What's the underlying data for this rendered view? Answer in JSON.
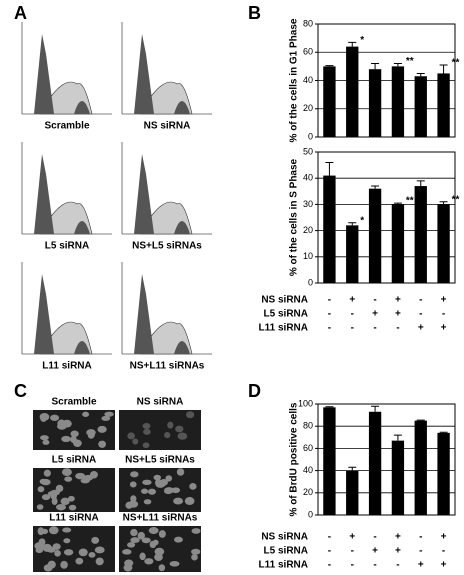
{
  "panel_letters": [
    "A",
    "B",
    "C",
    "D"
  ],
  "flow_labels": [
    "Scramble",
    "NS siRNA",
    "L5 siRNA",
    "NS+L5 siRNAs",
    "L11 siRNA",
    "NS+L11 siRNAs"
  ],
  "image_labels": [
    "Scramble",
    "NS siRNA",
    "L5 siRNA",
    "NS+L5 siRNAs",
    "L11 siRNA",
    "NS+L11 siRNAs"
  ],
  "chart_data": [
    {
      "type": "bar",
      "y_label": "% of the cells in G1 Phase",
      "color": "#000000",
      "values": [
        50,
        64,
        48,
        50,
        43,
        45
      ],
      "errors": [
        0.5,
        3,
        4,
        2,
        2,
        6
      ],
      "annotations": [
        null,
        "*",
        null,
        "**",
        null,
        "**"
      ],
      "ylim": [
        0,
        80
      ],
      "yticks": [
        0,
        20,
        40,
        60,
        80
      ],
      "grid": true
    },
    {
      "type": "bar",
      "y_label": "% of the cells in S Phase",
      "color": "#000000",
      "values": [
        41,
        22,
        36,
        30,
        37,
        30
      ],
      "errors": [
        5,
        1,
        1,
        0.5,
        2,
        1
      ],
      "annotations": [
        null,
        "*",
        null,
        "**",
        null,
        "**"
      ],
      "ylim": [
        0,
        50
      ],
      "yticks": [
        0,
        10,
        20,
        30,
        40,
        50
      ],
      "grid": true,
      "conditions": [
        {
          "name": "NS siRNA",
          "signs": [
            "-",
            "+",
            "-",
            "+",
            "-",
            "+"
          ]
        },
        {
          "name": "L5 siRNA",
          "signs": [
            "-",
            "-",
            "+",
            "+",
            "-",
            "-"
          ]
        },
        {
          "name": "L11 siRNA",
          "signs": [
            "-",
            "-",
            "-",
            "-",
            "+",
            "+"
          ]
        }
      ]
    },
    {
      "type": "bar",
      "y_label": "% of BrdU positive cells",
      "color": "#000000",
      "values": [
        97,
        40,
        93,
        67,
        85,
        74
      ],
      "errors": [
        0.5,
        3,
        5,
        5,
        0.5,
        0.5
      ],
      "annotations": [
        null,
        null,
        null,
        null,
        null,
        null
      ],
      "ylim": [
        0,
        100
      ],
      "yticks": [
        0,
        20,
        40,
        60,
        80,
        100
      ],
      "grid": true,
      "conditions": [
        {
          "name": "NS siRNA",
          "signs": [
            "-",
            "+",
            "-",
            "+",
            "-",
            "+"
          ]
        },
        {
          "name": "L5 siRNA",
          "signs": [
            "-",
            "-",
            "+",
            "+",
            "-",
            "-"
          ]
        },
        {
          "name": "L11 siRNA",
          "signs": [
            "-",
            "-",
            "-",
            "-",
            "+",
            "+"
          ]
        }
      ]
    }
  ]
}
